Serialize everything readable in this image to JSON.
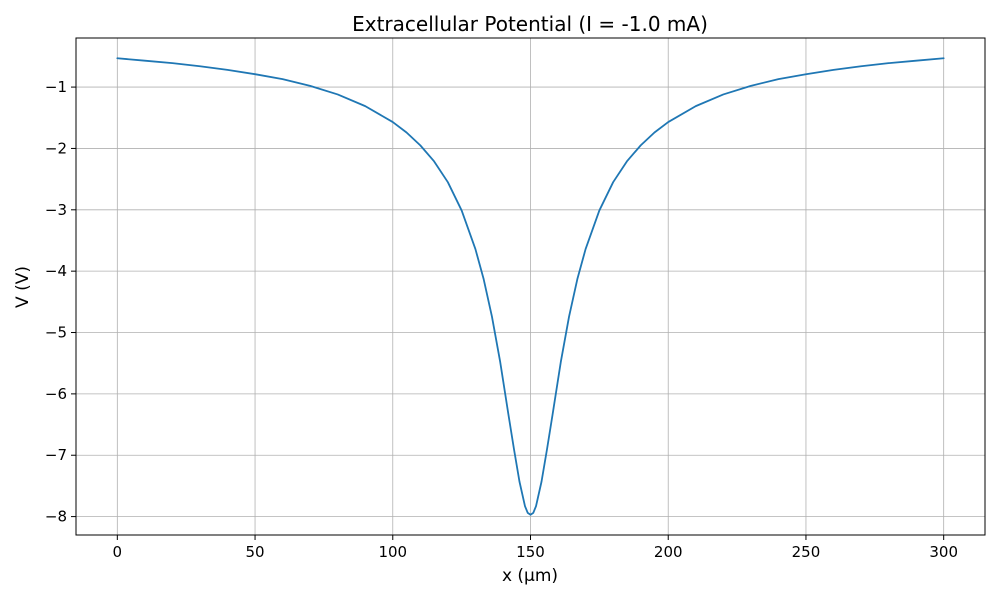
{
  "chart_data": {
    "type": "line",
    "title": "Extracellular Potential (I = -1.0 mA)",
    "xlabel": "x (µm)",
    "ylabel": "V (V)",
    "xlim": [
      -15,
      315
    ],
    "ylim": [
      -8.3,
      -0.2
    ],
    "grid": true,
    "x_ticks": [
      0,
      50,
      100,
      150,
      200,
      250,
      300
    ],
    "x_tick_labels": [
      "0",
      "50",
      "100",
      "150",
      "200",
      "250",
      "300"
    ],
    "y_ticks": [
      -1,
      -2,
      -3,
      -4,
      -5,
      -6,
      -7,
      -8
    ],
    "y_tick_labels": [
      "−1",
      "−2",
      "−3",
      "−4",
      "−5",
      "−6",
      "−7",
      "−8"
    ],
    "series": [
      {
        "color": "#1f77b4",
        "x": [
          0,
          10,
          20,
          30,
          40,
          50,
          60,
          70,
          80,
          90,
          100,
          105,
          110,
          115,
          120,
          125,
          130,
          133,
          136,
          139,
          142,
          144,
          146,
          148,
          149,
          150,
          151,
          152,
          154,
          156,
          158,
          161,
          164,
          167,
          170,
          175,
          180,
          185,
          190,
          195,
          200,
          210,
          220,
          230,
          240,
          250,
          260,
          270,
          280,
          290,
          300
        ],
        "y": [
          -0.53,
          -0.57,
          -0.61,
          -0.66,
          -0.72,
          -0.79,
          -0.87,
          -0.98,
          -1.12,
          -1.31,
          -1.57,
          -1.74,
          -1.95,
          -2.21,
          -2.55,
          -3.01,
          -3.64,
          -4.13,
          -4.74,
          -5.48,
          -6.34,
          -6.9,
          -7.43,
          -7.83,
          -7.94,
          -7.97,
          -7.94,
          -7.83,
          -7.43,
          -6.9,
          -6.34,
          -5.48,
          -4.74,
          -4.13,
          -3.64,
          -3.01,
          -2.55,
          -2.21,
          -1.95,
          -1.74,
          -1.57,
          -1.31,
          -1.12,
          -0.98,
          -0.87,
          -0.79,
          -0.72,
          -0.66,
          -0.61,
          -0.57,
          -0.53
        ]
      }
    ]
  }
}
